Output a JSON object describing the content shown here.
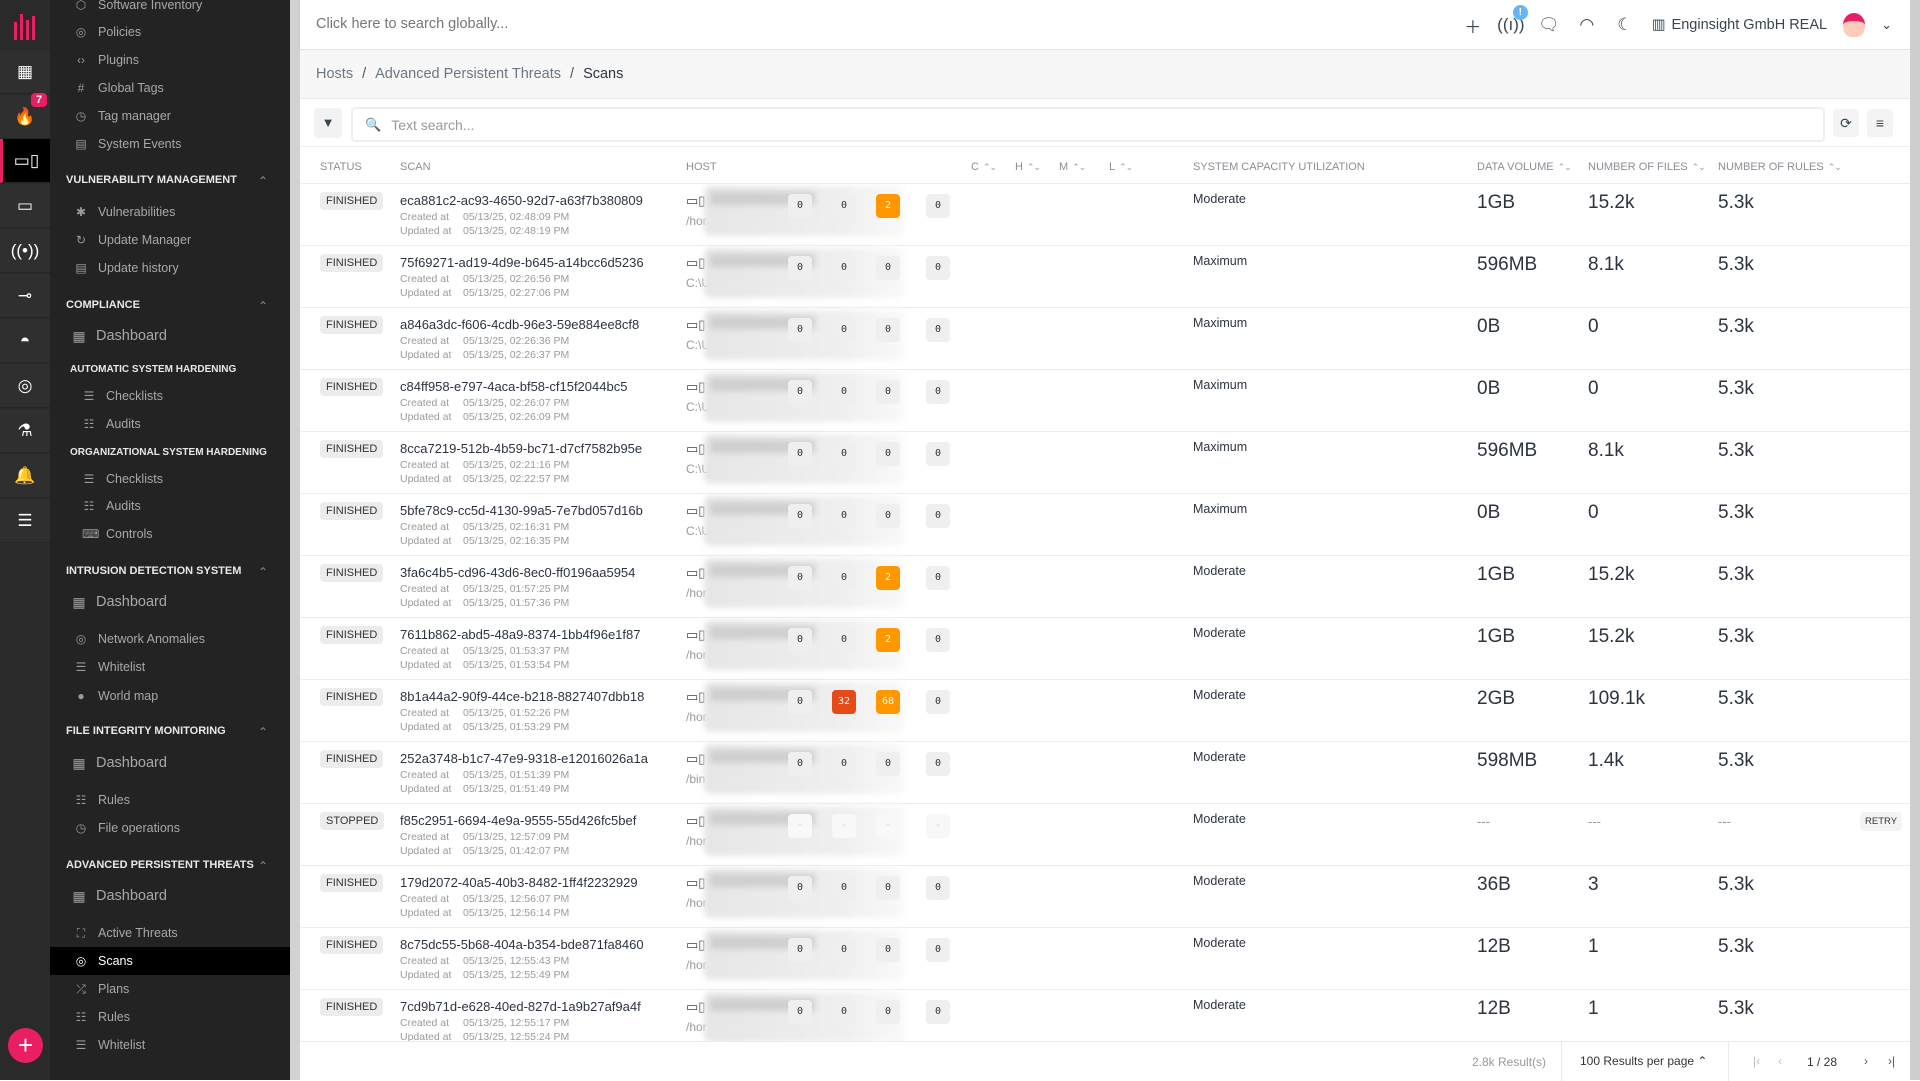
{
  "rail": {
    "badge_count": "7",
    "items": [
      "logo",
      "dashboard-icon",
      "fire-icon",
      "devices-icon",
      "window-icon",
      "broadcast-icon",
      "network-icon",
      "spy-icon",
      "radar-icon",
      "microscope-icon",
      "alarm-icon",
      "sliders-icon"
    ],
    "add_label": "+"
  },
  "sidebar": {
    "top_items": [
      {
        "label": "Software Inventory",
        "icon": "cube-icon"
      },
      {
        "label": "Policies",
        "icon": "at-icon"
      },
      {
        "label": "Plugins",
        "icon": "code-icon"
      },
      {
        "label": "Global Tags",
        "icon": "hash-icon"
      },
      {
        "label": "Tag manager",
        "icon": "clock-icon"
      },
      {
        "label": "System Events",
        "icon": "monitor-icon"
      }
    ],
    "vuln": {
      "title": "VULNERABILITY MANAGEMENT",
      "items": [
        "Vulnerabilities",
        "Update Manager",
        "Update history"
      ]
    },
    "compliance": {
      "title": "COMPLIANCE",
      "dashboard": "Dashboard",
      "auto_title": "AUTOMATIC SYSTEM HARDENING",
      "auto_items": [
        "Checklists",
        "Audits"
      ],
      "org_title": "ORGANIZATIONAL SYSTEM HARDENING",
      "org_items": [
        "Checklists",
        "Audits",
        "Controls"
      ]
    },
    "ids": {
      "title": "INTRUSION DETECTION SYSTEM",
      "dashboard": "Dashboard",
      "items": [
        "Network Anomalies",
        "Whitelist",
        "World map"
      ]
    },
    "fim": {
      "title": "FILE INTEGRITY MONITORING",
      "dashboard": "Dashboard",
      "items": [
        "Rules",
        "File operations"
      ]
    },
    "apt": {
      "title": "ADVANCED PERSISTENT THREATS",
      "dashboard": "Dashboard",
      "items": [
        "Active Threats",
        "Scans",
        "Plans",
        "Rules",
        "Whitelist"
      ],
      "selected": "Scans"
    }
  },
  "header": {
    "search_placeholder": "Click here to search globally...",
    "notification_badge": "!",
    "org_name": "Enginsight GmbH REAL"
  },
  "breadcrumb": [
    "Hosts",
    "Advanced Persistent Threats",
    "Scans"
  ],
  "toolbar": {
    "search_placeholder": "Text search..."
  },
  "table": {
    "columns": {
      "status": "STATUS",
      "scan": "SCAN",
      "host": "HOST",
      "c": "C",
      "h": "H",
      "m": "M",
      "l": "L",
      "capacity": "SYSTEM CAPACITY UTILIZATION",
      "volume": "DATA VOLUME",
      "files": "NUMBER OF FILES",
      "rules": "NUMBER OF RULES"
    },
    "created_label": "Created at",
    "updated_label": "Updated at",
    "retry_label": "RETRY",
    "rows": [
      {
        "status": "FINISHED",
        "id": "eca881c2-ac93-4650-92d7-a63f7b380809",
        "created": "05/13/25, 02:48:09 PM",
        "updated": "05/13/25, 02:48:19 PM",
        "host_path": "/hor",
        "c": "0",
        "h": "0",
        "m": "2",
        "l": "0",
        "capacity": "Moderate",
        "volume": "1GB",
        "files": "15.2k",
        "rules": "5.3k"
      },
      {
        "status": "FINISHED",
        "id": "75f69271-ad19-4d9e-b645-a14bcc6d5236",
        "created": "05/13/25, 02:26:56 PM",
        "updated": "05/13/25, 02:27:06 PM",
        "host_path": "C:\\U",
        "c": "0",
        "h": "0",
        "m": "0",
        "l": "0",
        "capacity": "Maximum",
        "volume": "596MB",
        "files": "8.1k",
        "rules": "5.3k"
      },
      {
        "status": "FINISHED",
        "id": "a846a3dc-f606-4cdb-96e3-59e884ee8cf8",
        "created": "05/13/25, 02:26:36 PM",
        "updated": "05/13/25, 02:26:37 PM",
        "host_path": "C:\\U",
        "c": "0",
        "h": "0",
        "m": "0",
        "l": "0",
        "capacity": "Maximum",
        "volume": "0B",
        "files": "0",
        "rules": "5.3k"
      },
      {
        "status": "FINISHED",
        "id": "c84ff958-e797-4aca-bf58-cf15f2044bc5",
        "created": "05/13/25, 02:26:07 PM",
        "updated": "05/13/25, 02:26:09 PM",
        "host_path": "C:\\U",
        "c": "0",
        "h": "0",
        "m": "0",
        "l": "0",
        "capacity": "Maximum",
        "volume": "0B",
        "files": "0",
        "rules": "5.3k"
      },
      {
        "status": "FINISHED",
        "id": "8cca7219-512b-4b59-bc71-d7cf7582b95e",
        "created": "05/13/25, 02:21:16 PM",
        "updated": "05/13/25, 02:22:57 PM",
        "host_path": "C:\\U",
        "c": "0",
        "h": "0",
        "m": "0",
        "l": "0",
        "capacity": "Maximum",
        "volume": "596MB",
        "files": "8.1k",
        "rules": "5.3k"
      },
      {
        "status": "FINISHED",
        "id": "5bfe78c9-cc5d-4130-99a5-7e7bd057d16b",
        "created": "05/13/25, 02:16:31 PM",
        "updated": "05/13/25, 02:16:35 PM",
        "host_path": "C:\\U",
        "c": "0",
        "h": "0",
        "m": "0",
        "l": "0",
        "capacity": "Maximum",
        "volume": "0B",
        "files": "0",
        "rules": "5.3k"
      },
      {
        "status": "FINISHED",
        "id": "3fa6c4b5-cd96-43d6-8ec0-ff0196aa5954",
        "created": "05/13/25, 01:57:25 PM",
        "updated": "05/13/25, 01:57:36 PM",
        "host_path": "/hor",
        "c": "0",
        "h": "0",
        "m": "2",
        "l": "0",
        "capacity": "Moderate",
        "volume": "1GB",
        "files": "15.2k",
        "rules": "5.3k"
      },
      {
        "status": "FINISHED",
        "id": "7611b862-abd5-48a9-8374-1bb4f96e1f87",
        "created": "05/13/25, 01:53:37 PM",
        "updated": "05/13/25, 01:53:54 PM",
        "host_path": "/hor",
        "c": "0",
        "h": "0",
        "m": "2",
        "l": "0",
        "capacity": "Moderate",
        "volume": "1GB",
        "files": "15.2k",
        "rules": "5.3k"
      },
      {
        "status": "FINISHED",
        "id": "8b1a44a2-90f9-44ce-b218-8827407dbb18",
        "created": "05/13/25, 01:52:26 PM",
        "updated": "05/13/25, 01:53:29 PM",
        "host_path": "/hor",
        "c": "0",
        "h": "32",
        "m": "68",
        "l": "0",
        "capacity": "Moderate",
        "volume": "2GB",
        "files": "109.1k",
        "rules": "5.3k"
      },
      {
        "status": "FINISHED",
        "id": "252a3748-b1c7-47e9-9318-e12016026a1a",
        "created": "05/13/25, 01:51:39 PM",
        "updated": "05/13/25, 01:51:49 PM",
        "host_path": "/bin",
        "c": "0",
        "h": "0",
        "m": "0",
        "l": "0",
        "capacity": "Moderate",
        "volume": "598MB",
        "files": "1.4k",
        "rules": "5.3k"
      },
      {
        "status": "STOPPED",
        "id": "f85c2951-6694-4e9a-9555-55d426fc5bef",
        "created": "05/13/25, 12:57:09 PM",
        "updated": "05/13/25, 01:42:07 PM",
        "host_path": "/hor",
        "c": "-",
        "h": "-",
        "m": "-",
        "l": "-",
        "capacity": "Moderate",
        "volume": "---",
        "files": "---",
        "rules": "---",
        "retry": true
      },
      {
        "status": "FINISHED",
        "id": "179d2072-40a5-40b3-8482-1ff4f2232929",
        "created": "05/13/25, 12:56:07 PM",
        "updated": "05/13/25, 12:56:14 PM",
        "host_path": "/hor",
        "c": "0",
        "h": "0",
        "m": "0",
        "l": "0",
        "capacity": "Moderate",
        "volume": "36B",
        "files": "3",
        "rules": "5.3k"
      },
      {
        "status": "FINISHED",
        "id": "8c75dc55-5b68-404a-b354-bde871fa8460",
        "created": "05/13/25, 12:55:43 PM",
        "updated": "05/13/25, 12:55:49 PM",
        "host_path": "/hor",
        "c": "0",
        "h": "0",
        "m": "0",
        "l": "0",
        "capacity": "Moderate",
        "volume": "12B",
        "files": "1",
        "rules": "5.3k"
      },
      {
        "status": "FINISHED",
        "id": "7cd9b71d-e628-40ed-827d-1a9b27af9a4f",
        "created": "05/13/25, 12:55:17 PM",
        "updated": "05/13/25, 12:55:24 PM",
        "host_path": "/hor",
        "c": "0",
        "h": "0",
        "m": "0",
        "l": "0",
        "capacity": "Moderate",
        "volume": "12B",
        "files": "1",
        "rules": "5.3k"
      }
    ]
  },
  "footer": {
    "results": "2.8k Result(s)",
    "per_page": "100 Results per page",
    "page": "1 / 28"
  },
  "colors": {
    "accent": "#e91e63",
    "medium": "#ff9800",
    "high": "#e64a19",
    "info": "#64b5f6"
  }
}
